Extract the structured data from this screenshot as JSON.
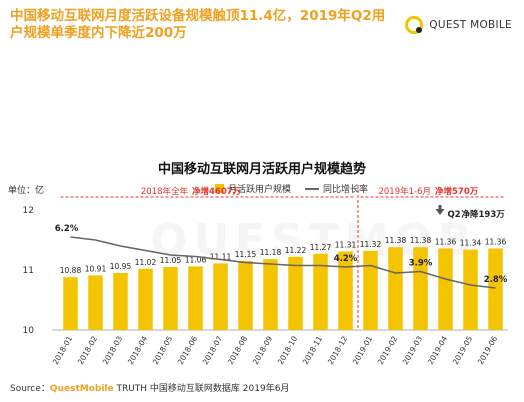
{
  "headline": "中国移动互联网月度活跃设备规模触顶11.4亿，2019年Q2用户规模单季度内下降近200万",
  "brand": {
    "name": "QUEST MOBILE"
  },
  "chart_data": {
    "type": "bar",
    "title": "中国移动互联网月活跃用户规模趋势",
    "unit_label": "单位：亿",
    "categories": [
      "2018-01",
      "2018-02",
      "2018-03",
      "2018-04",
      "2018-05",
      "2018-06",
      "2018-07",
      "2018-08",
      "2018-09",
      "2018-10",
      "2018-11",
      "2018-12",
      "2019-01",
      "2019-02",
      "2019-03",
      "2019-04",
      "2019-05",
      "2019-06"
    ],
    "series": [
      {
        "name": "月活跃用户规模",
        "type": "bar",
        "values": [
          10.88,
          10.91,
          10.95,
          11.02,
          11.05,
          11.06,
          11.11,
          11.15,
          11.18,
          11.22,
          11.27,
          11.31,
          11.32,
          11.38,
          11.38,
          11.36,
          11.34,
          11.36
        ]
      },
      {
        "name": "同比增长率",
        "type": "line",
        "values": [
          6.2,
          6.0,
          5.6,
          5.3,
          5.0,
          4.9,
          4.7,
          4.5,
          4.4,
          4.3,
          4.3,
          4.2,
          4.3,
          3.8,
          3.9,
          3.4,
          3.0,
          2.8
        ]
      }
    ],
    "line_labels": [
      {
        "index": 0,
        "text": "6.2%"
      },
      {
        "index": 11,
        "text": "4.2%"
      },
      {
        "index": 14,
        "text": "3.9%"
      },
      {
        "index": 17,
        "text": "2.8%"
      }
    ],
    "y_ticks": [
      "12",
      "11",
      "10"
    ],
    "ylim": [
      10,
      12
    ],
    "line_ylim": [
      0,
      8
    ],
    "bar_color": "#f5c400",
    "line_color": "#666666",
    "annotations": {
      "period_2018": {
        "label": "2018年全年",
        "value": "净增4607万"
      },
      "period_2019": {
        "label": "2019年1-6月",
        "value": "净增570万"
      },
      "q2": {
        "label": "Q2",
        "value": "净降193万"
      }
    },
    "accent_color": "#e8352b"
  },
  "source": {
    "prefix": "Source：",
    "brand": "QuestMobile",
    "rest": " TRUTH 中国移动互联网数据库 2019年6月"
  },
  "watermark": "QUESTMOB"
}
